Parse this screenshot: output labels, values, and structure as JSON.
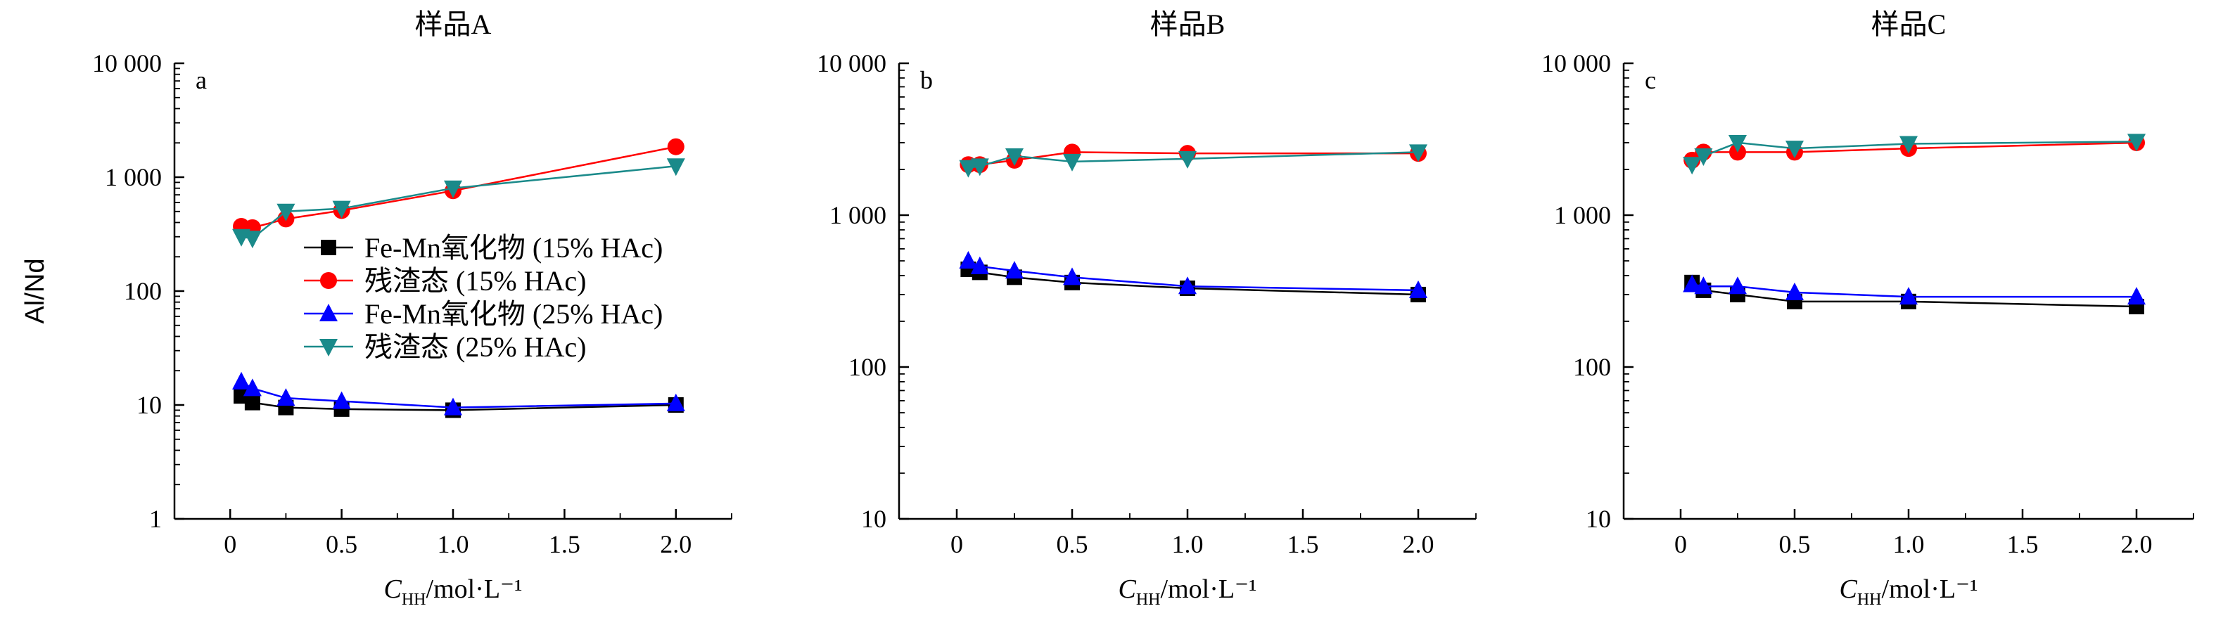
{
  "chart_data": [
    {
      "type": "line",
      "title": "样品A",
      "panel_label": "a",
      "ylabel": "Al/Nd",
      "xlabel_symbol": "C",
      "xlabel_subscript": "HH",
      "xlabel_unit": "/mol·L⁻¹",
      "yscale": "log",
      "xlim": [
        -0.25,
        2.25
      ],
      "ylim": [
        1,
        10000
      ],
      "xticks": [
        0,
        0.5,
        1.0,
        1.5,
        2.0
      ],
      "xtick_labels": [
        "0",
        "0.5",
        "1.0",
        "1.5",
        "2.0"
      ],
      "yticks": [
        1,
        10,
        100,
        1000,
        10000
      ],
      "ytick_labels": [
        "1",
        "10",
        "100",
        "1 000",
        "10 000"
      ],
      "legend_position": "middle-right",
      "series": [
        {
          "name": "Fe-Mn氧化物 (15% HAc)",
          "color": "#000000",
          "marker": "square",
          "x": [
            0.05,
            0.1,
            0.25,
            0.5,
            1.0,
            2.0
          ],
          "y": [
            12,
            10.5,
            9.5,
            9.2,
            9.0,
            10.0
          ]
        },
        {
          "name": "残渣态 (15% HAc)",
          "color": "#ff0000",
          "marker": "circle",
          "x": [
            0.05,
            0.1,
            0.25,
            0.5,
            1.0,
            2.0
          ],
          "y": [
            370,
            360,
            430,
            510,
            760,
            1850
          ]
        },
        {
          "name": "Fe-Mn氧化物 (25% HAc)",
          "color": "#0000ff",
          "marker": "triangle-up",
          "x": [
            0.05,
            0.1,
            0.25,
            0.5,
            1.0,
            2.0
          ],
          "y": [
            16,
            14,
            11.5,
            10.8,
            9.5,
            10.3
          ]
        },
        {
          "name": "残渣态 (25% HAc)",
          "color": "#1a8a8a",
          "marker": "triangle-down",
          "x": [
            0.05,
            0.1,
            0.25,
            0.5,
            1.0,
            2.0
          ],
          "y": [
            300,
            290,
            500,
            530,
            800,
            1250
          ]
        }
      ]
    },
    {
      "type": "line",
      "title": "样品B",
      "panel_label": "b",
      "xlabel_symbol": "C",
      "xlabel_subscript": "HH",
      "xlabel_unit": "/mol·L⁻¹",
      "yscale": "log",
      "xlim": [
        -0.25,
        2.25
      ],
      "ylim": [
        10,
        10000
      ],
      "xticks": [
        0,
        0.5,
        1.0,
        1.5,
        2.0
      ],
      "xtick_labels": [
        "0",
        "0.5",
        "1.0",
        "1.5",
        "2.0"
      ],
      "yticks": [
        10,
        100,
        1000,
        10000
      ],
      "ytick_labels": [
        "10",
        "100",
        "1 000",
        "10 000"
      ],
      "series": [
        {
          "name": "Fe-Mn氧化物 (15% HAc)",
          "color": "#000000",
          "marker": "square",
          "x": [
            0.05,
            0.1,
            0.25,
            0.5,
            1.0,
            2.0
          ],
          "y": [
            440,
            420,
            390,
            360,
            330,
            300
          ]
        },
        {
          "name": "残渣态 (15% HAc)",
          "color": "#ff0000",
          "marker": "circle",
          "x": [
            0.05,
            0.1,
            0.25,
            0.5,
            1.0,
            2.0
          ],
          "y": [
            2150,
            2150,
            2300,
            2600,
            2550,
            2550
          ]
        },
        {
          "name": "Fe-Mn氧化物 (25% HAc)",
          "color": "#0000ff",
          "marker": "triangle-up",
          "x": [
            0.05,
            0.1,
            0.25,
            0.5,
            1.0,
            2.0
          ],
          "y": [
            500,
            460,
            430,
            390,
            340,
            320
          ]
        },
        {
          "name": "残渣态 (25% HAc)",
          "color": "#1a8a8a",
          "marker": "triangle-down",
          "x": [
            0.05,
            0.1,
            0.25,
            0.5,
            1.0,
            2.0
          ],
          "y": [
            2050,
            2100,
            2450,
            2250,
            2350,
            2600
          ]
        }
      ]
    },
    {
      "type": "line",
      "title": "样品C",
      "panel_label": "c",
      "xlabel_symbol": "C",
      "xlabel_subscript": "HH",
      "xlabel_unit": "/mol·L⁻¹",
      "yscale": "log",
      "xlim": [
        -0.25,
        2.25
      ],
      "ylim": [
        10,
        10000
      ],
      "xticks": [
        0,
        0.5,
        1.0,
        1.5,
        2.0
      ],
      "xtick_labels": [
        "0",
        "0.5",
        "1.0",
        "1.5",
        "2.0"
      ],
      "yticks": [
        10,
        100,
        1000,
        10000
      ],
      "ytick_labels": [
        "10",
        "100",
        "1 000",
        "10 000"
      ],
      "series": [
        {
          "name": "Fe-Mn氧化物 (15% HAc)",
          "color": "#000000",
          "marker": "square",
          "x": [
            0.05,
            0.1,
            0.25,
            0.5,
            1.0,
            2.0
          ],
          "y": [
            360,
            320,
            300,
            270,
            270,
            250
          ]
        },
        {
          "name": "残渣态 (15% HAc)",
          "color": "#ff0000",
          "marker": "circle",
          "x": [
            0.05,
            0.1,
            0.25,
            0.5,
            1.0,
            2.0
          ],
          "y": [
            2300,
            2600,
            2600,
            2600,
            2750,
            3000
          ]
        },
        {
          "name": "Fe-Mn氧化物 (25% HAc)",
          "color": "#0000ff",
          "marker": "triangle-up",
          "x": [
            0.05,
            0.1,
            0.25,
            0.5,
            1.0,
            2.0
          ],
          "y": [
            350,
            340,
            340,
            310,
            290,
            290
          ]
        },
        {
          "name": "残渣态 (25% HAc)",
          "color": "#1a8a8a",
          "marker": "triangle-down",
          "x": [
            0.05,
            0.1,
            0.25,
            0.5,
            1.0,
            2.0
          ],
          "y": [
            2150,
            2450,
            3000,
            2750,
            2950,
            3050
          ]
        }
      ]
    }
  ]
}
